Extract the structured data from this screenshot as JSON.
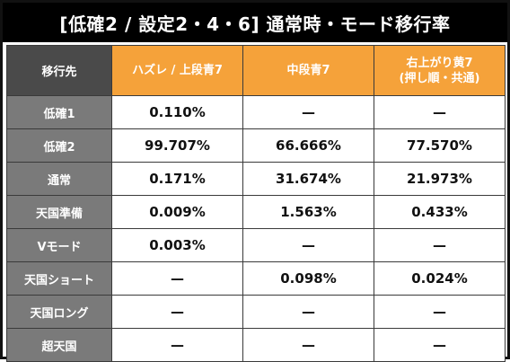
{
  "title": "[低確2 / 設定2・4・6]  通常時・モード移行率",
  "table": {
    "corner_label": "移行先",
    "columns": [
      {
        "line1": "ハズレ / 上段青7",
        "line2": ""
      },
      {
        "line1": "中段青7",
        "line2": ""
      },
      {
        "line1": "右上がり黄7",
        "line2": "(押し順・共通)"
      }
    ],
    "rows": [
      {
        "label": "低確1",
        "values": [
          "0.110%",
          "—",
          "—"
        ]
      },
      {
        "label": "低確2",
        "values": [
          "99.707%",
          "66.666%",
          "77.570%"
        ]
      },
      {
        "label": "通常",
        "values": [
          "0.171%",
          "31.674%",
          "21.973%"
        ]
      },
      {
        "label": "天国準備",
        "values": [
          "0.009%",
          "1.563%",
          "0.433%"
        ]
      },
      {
        "label": "Vモード",
        "values": [
          "0.003%",
          "—",
          "—"
        ]
      },
      {
        "label": "天国ショート",
        "values": [
          "—",
          "0.098%",
          "0.024%"
        ]
      },
      {
        "label": "天国ロング",
        "values": [
          "—",
          "—",
          "—"
        ]
      },
      {
        "label": "超天国",
        "values": [
          "—",
          "—",
          "—"
        ]
      }
    ]
  },
  "colors": {
    "title_bg": "#000000",
    "header_accent": "#f5a23a",
    "row_header_bg": "#7a7a7a",
    "corner_bg": "#4a4a4a"
  }
}
